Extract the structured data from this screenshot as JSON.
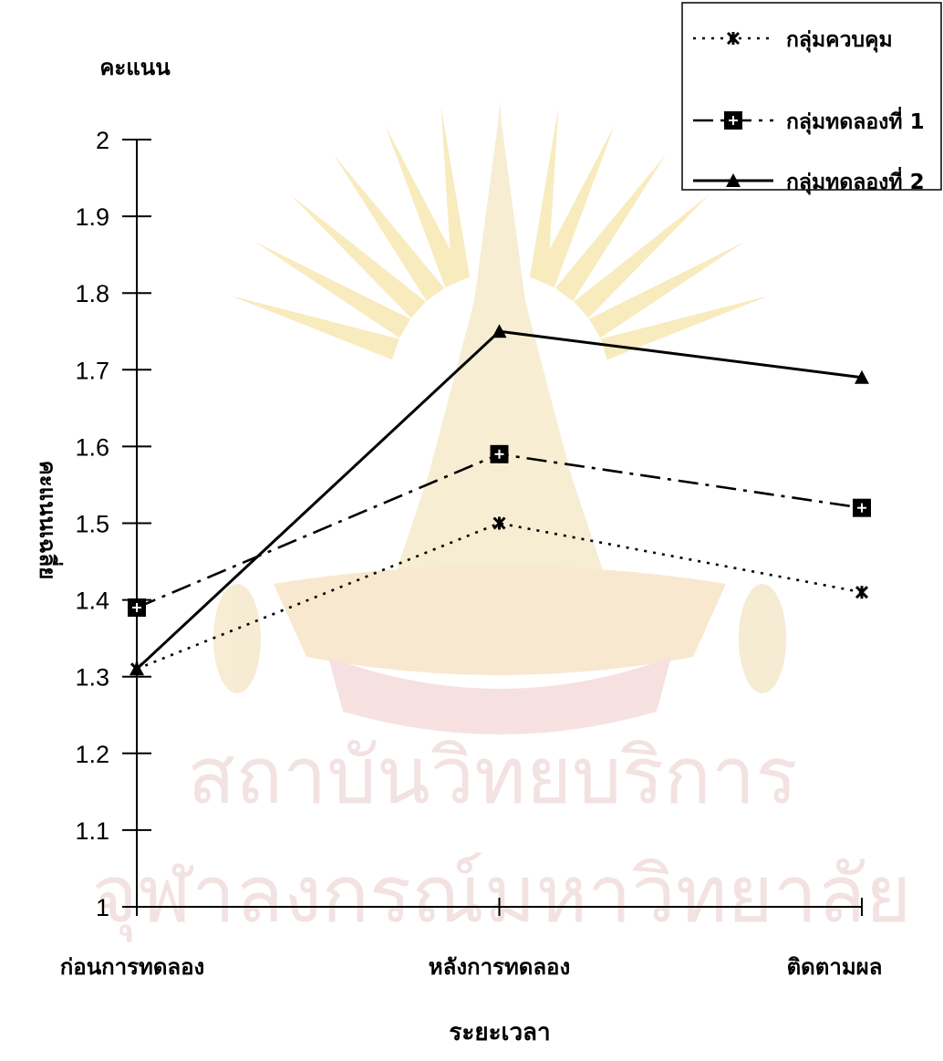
{
  "chart_data": {
    "type": "line",
    "categories": [
      "ก่อนการทดลอง",
      "หลังการทดลอง",
      "ติดตามผล"
    ],
    "series": [
      {
        "name": "กลุ่มควบคุม",
        "values": [
          1.31,
          1.5,
          1.41
        ],
        "line_style": "dotted",
        "marker": "star",
        "color": "#000000"
      },
      {
        "name": "กลุ่มทดลองที่ 1",
        "values": [
          1.39,
          1.59,
          1.52
        ],
        "line_style": "dash-dot",
        "marker": "square",
        "color": "#000000"
      },
      {
        "name": "กลุ่มทดลองที่ 2",
        "values": [
          1.31,
          1.75,
          1.69
        ],
        "line_style": "solid",
        "marker": "triangle",
        "color": "#000000"
      }
    ],
    "y_ticks": [
      "1",
      "1.1",
      "1.2",
      "1.3",
      "1.4",
      "1.5",
      "1.6",
      "1.7",
      "1.8",
      "1.9",
      "2"
    ],
    "ylim": [
      1,
      2
    ],
    "ylabel": "คะแนนเฉลี่ย",
    "y_unit_label": "คะแนน",
    "xlabel": "ระยะเวลา",
    "grid": false,
    "legend_position": "top-right",
    "watermark": {
      "lines": [
        "สถาบันวิทยบริการ",
        "จุฬาลงกรณ์มหาวิทยาลัย"
      ],
      "color": "#f0d8d8"
    }
  }
}
